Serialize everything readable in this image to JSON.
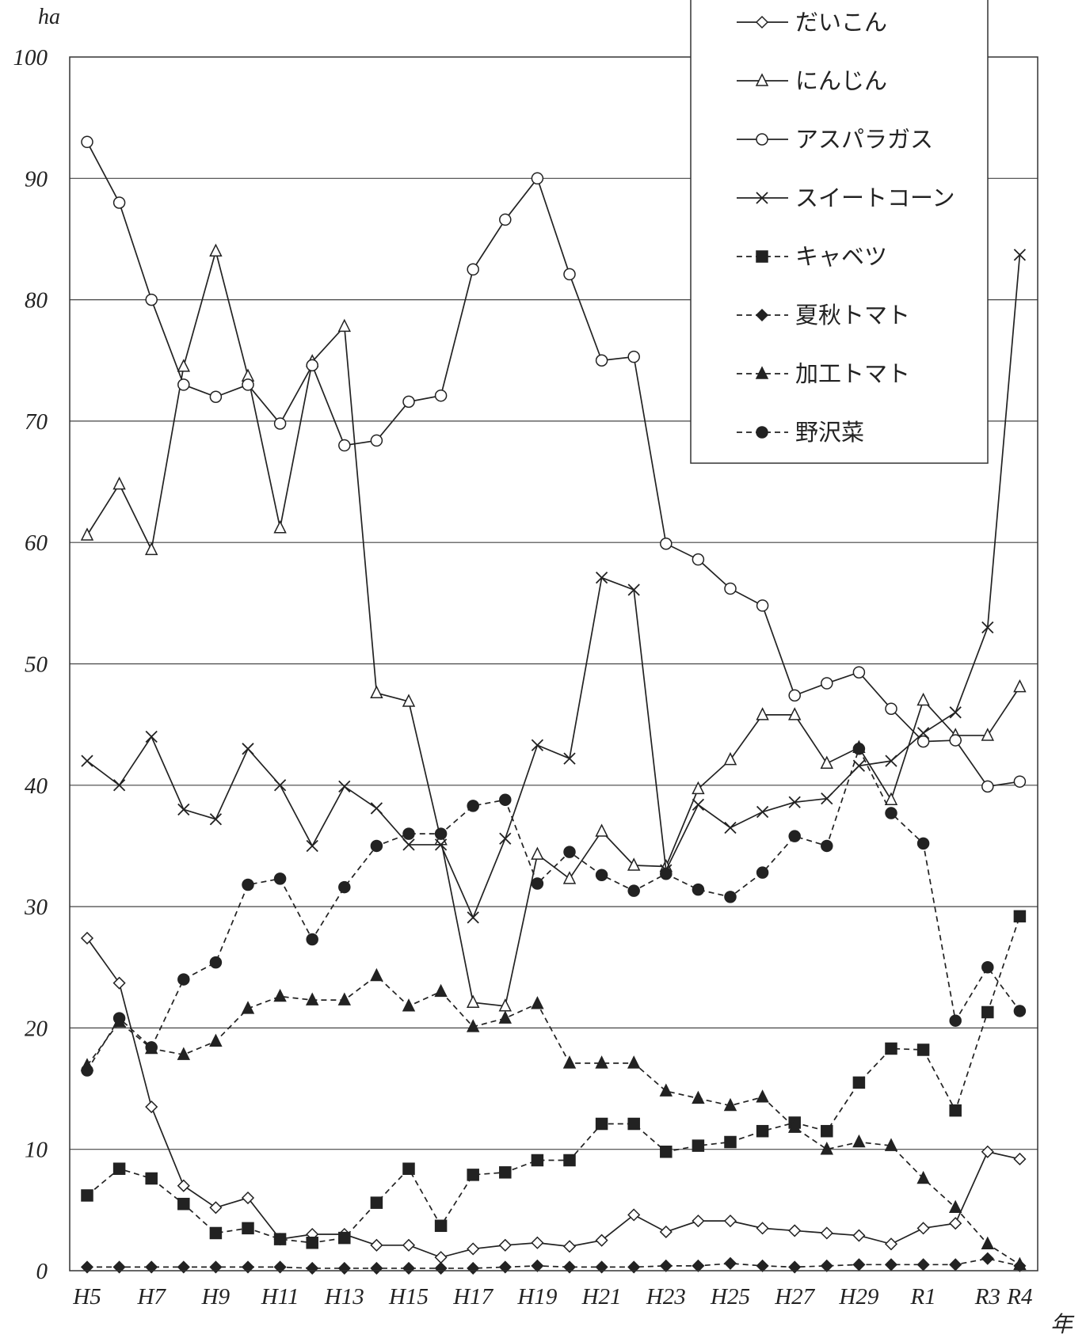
{
  "chart_data": {
    "type": "line",
    "ylabel": "ha",
    "xlabel": "年",
    "ylim": [
      0,
      100
    ],
    "yticks": [
      "0",
      "10",
      "20",
      "30",
      "40",
      "50",
      "60",
      "70",
      "80",
      "90",
      "100"
    ],
    "categories": [
      "H5",
      "H6",
      "H7",
      "H8",
      "H9",
      "H10",
      "H11",
      "H12",
      "H13",
      "H14",
      "H15",
      "H16",
      "H17",
      "H18",
      "H19",
      "H20",
      "H21",
      "H22",
      "H23",
      "H24",
      "H25",
      "H26",
      "H27",
      "H28",
      "H29",
      "H30",
      "R1",
      "R2",
      "R3",
      "R4"
    ],
    "xtick_labels": [
      "H5",
      "",
      "H7",
      "",
      "H9",
      "",
      "H11",
      "",
      "H13",
      "",
      "H15",
      "",
      "H17",
      "",
      "H19",
      "",
      "H21",
      "",
      "H23",
      "",
      "H25",
      "",
      "H27",
      "",
      "H29",
      "",
      "R1",
      "",
      "R3",
      "R4"
    ],
    "grid": true,
    "legend_position": "top-right",
    "series": [
      {
        "name": "だいこん",
        "style": "solid",
        "marker": "diamond-open",
        "values": [
          27.4,
          23.7,
          13.5,
          7.0,
          5.2,
          6.0,
          2.6,
          3.0,
          3.0,
          2.1,
          2.1,
          1.1,
          1.8,
          2.1,
          2.3,
          2.0,
          2.5,
          4.6,
          3.2,
          4.1,
          4.1,
          3.5,
          3.3,
          3.1,
          2.9,
          2.2,
          3.5,
          3.9,
          9.8,
          9.2
        ]
      },
      {
        "name": "にんじん",
        "style": "solid",
        "marker": "triangle-open",
        "values": [
          60.6,
          64.8,
          59.4,
          74.5,
          84.0,
          73.7,
          61.2,
          74.9,
          77.8,
          47.6,
          46.9,
          35.5,
          22.1,
          21.8,
          34.3,
          32.3,
          36.2,
          33.4,
          33.3,
          39.7,
          42.1,
          45.8,
          45.8,
          41.8,
          43.1,
          38.8,
          47.0,
          44.1,
          44.1,
          48.1
        ]
      },
      {
        "name": "アスパラガス",
        "style": "solid",
        "marker": "circle-open",
        "values": [
          93.0,
          88.0,
          80.0,
          73.0,
          72.0,
          73.0,
          69.8,
          74.6,
          68.0,
          68.4,
          71.6,
          72.1,
          82.5,
          86.6,
          90.0,
          82.1,
          75.0,
          75.3,
          59.9,
          58.6,
          56.2,
          54.8,
          47.4,
          48.4,
          49.3,
          46.3,
          43.6,
          43.7,
          39.9,
          40.3
        ]
      },
      {
        "name": "スイートコーン",
        "style": "solid",
        "marker": "x",
        "values": [
          42.0,
          40.0,
          44.0,
          38.0,
          37.2,
          43.0,
          40.0,
          35.0,
          39.9,
          38.1,
          35.1,
          35.1,
          29.1,
          35.6,
          43.3,
          42.2,
          57.1,
          56.1,
          33.0,
          38.4,
          36.5,
          37.8,
          38.6,
          38.9,
          41.6,
          42.0,
          44.3,
          46.0,
          53.0,
          83.7
        ]
      },
      {
        "name": "キャベツ",
        "style": "dashed",
        "marker": "square-filled",
        "values": [
          6.2,
          8.4,
          7.6,
          5.5,
          3.1,
          3.5,
          2.6,
          2.3,
          2.7,
          5.6,
          8.4,
          3.7,
          7.9,
          8.1,
          9.1,
          9.1,
          12.1,
          12.1,
          9.8,
          10.3,
          10.6,
          11.5,
          12.2,
          11.5,
          15.5,
          18.3,
          18.2,
          13.2,
          21.3,
          29.2
        ]
      },
      {
        "name": "夏秋トマト",
        "style": "dashed",
        "marker": "diamond-filled",
        "values": [
          0.3,
          0.3,
          0.3,
          0.3,
          0.3,
          0.3,
          0.3,
          0.2,
          0.2,
          0.2,
          0.2,
          0.2,
          0.2,
          0.3,
          0.4,
          0.3,
          0.3,
          0.3,
          0.4,
          0.4,
          0.6,
          0.4,
          0.3,
          0.4,
          0.5,
          0.5,
          0.5,
          0.5,
          1.0,
          0.4
        ]
      },
      {
        "name": "加工トマト",
        "style": "dashed",
        "marker": "triangle-filled",
        "values": [
          16.9,
          20.5,
          18.3,
          17.8,
          18.9,
          21.6,
          22.6,
          22.3,
          22.3,
          24.3,
          21.8,
          23.0,
          20.1,
          20.8,
          22.0,
          17.1,
          17.1,
          17.1,
          14.8,
          14.2,
          13.6,
          14.3,
          11.8,
          10.0,
          10.6,
          10.3,
          7.6,
          5.2,
          2.2,
          0.5
        ]
      },
      {
        "name": "野沢菜",
        "style": "dashed",
        "marker": "circle-filled",
        "values": [
          16.5,
          20.8,
          18.4,
          24.0,
          25.4,
          31.8,
          32.3,
          27.3,
          31.6,
          35.0,
          36.0,
          36.0,
          38.3,
          38.8,
          31.9,
          34.5,
          32.6,
          31.3,
          32.7,
          31.4,
          30.8,
          32.8,
          35.8,
          35.0,
          43.0,
          37.7,
          35.2,
          20.6,
          25.0,
          21.4
        ]
      }
    ]
  }
}
